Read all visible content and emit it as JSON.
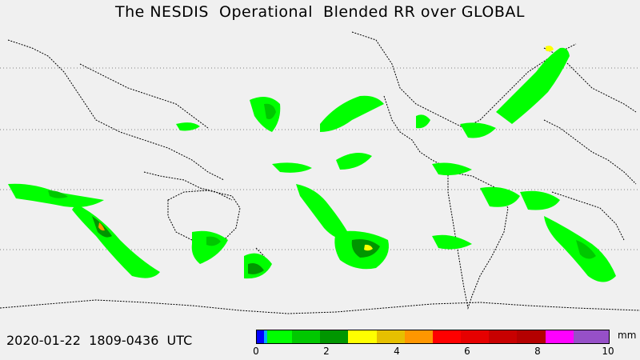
{
  "title": "The NESDIS  Operational  Blended RR over GLOBAL",
  "timestamp": "2020-01-22  1809-0436  UTC",
  "colorbar": {
    "units": "mm",
    "min": 0,
    "max": 10,
    "tick_labels": [
      "0",
      "2",
      "4",
      "6",
      "8",
      "10"
    ],
    "bins": [
      {
        "from": 0.0,
        "to": 0.2,
        "color": "#0000ff"
      },
      {
        "from": 0.2,
        "to": 0.3,
        "color": "#00aaff"
      },
      {
        "from": 0.3,
        "to": 1.0,
        "color": "#00ff00"
      },
      {
        "from": 1.0,
        "to": 1.8,
        "color": "#00c800"
      },
      {
        "from": 1.8,
        "to": 2.6,
        "color": "#009600"
      },
      {
        "from": 2.6,
        "to": 3.4,
        "color": "#ffff00"
      },
      {
        "from": 3.4,
        "to": 4.2,
        "color": "#e6c000"
      },
      {
        "from": 4.2,
        "to": 5.0,
        "color": "#ff9600"
      },
      {
        "from": 5.0,
        "to": 5.8,
        "color": "#ff0000"
      },
      {
        "from": 5.8,
        "to": 6.6,
        "color": "#e60000"
      },
      {
        "from": 6.6,
        "to": 7.4,
        "color": "#c80000"
      },
      {
        "from": 7.4,
        "to": 8.2,
        "color": "#b40000"
      },
      {
        "from": 8.2,
        "to": 9.0,
        "color": "#ff00ff"
      },
      {
        "from": 9.0,
        "to": 10.0,
        "color": "#9650c8"
      }
    ]
  },
  "colors": {
    "background": "#f0f0f0",
    "coastline": "#000000",
    "gridline": "#808080"
  },
  "map": {
    "projection": "cylindrical",
    "coverage": "global",
    "gridlines": "dotted latitude lines"
  }
}
